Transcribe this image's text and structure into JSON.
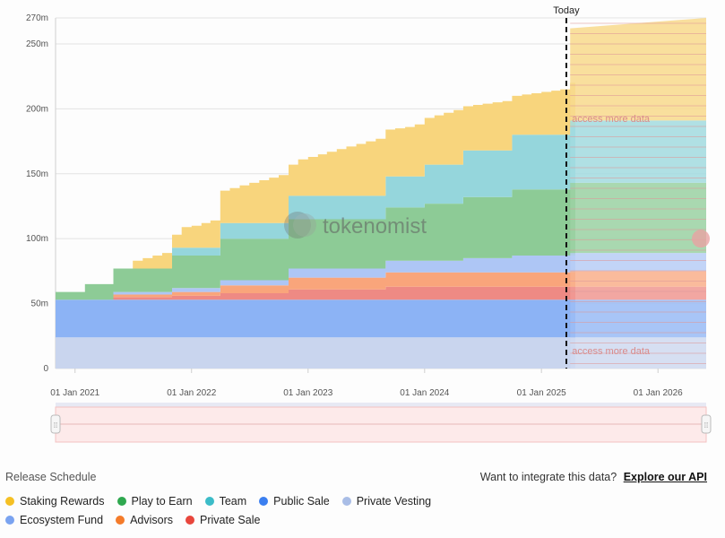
{
  "chart_data": {
    "type": "area",
    "today_label": "Today",
    "watermark": "tokenomist",
    "locked_text": "access more data",
    "ylim": [
      0,
      270
    ],
    "y_ticks": [
      {
        "v": 0,
        "label": "0"
      },
      {
        "v": 50,
        "label": "50m"
      },
      {
        "v": 100,
        "label": "100m"
      },
      {
        "v": 150,
        "label": "150m"
      },
      {
        "v": 200,
        "label": "200m"
      },
      {
        "v": 250,
        "label": "250m"
      },
      {
        "v": 270,
        "label": "270m"
      }
    ],
    "x_ticks": [
      "01 Jan 2021",
      "01 Jan 2022",
      "01 Jan 2023",
      "01 Jan 2024",
      "01 Jan 2025",
      "01 Jan 2026"
    ],
    "x_start": "2020-11-01",
    "x_end": "2026-06-01",
    "today": "2025-03-20",
    "dates": [
      "2020-11-01",
      "2021-02-01",
      "2021-05-01",
      "2021-06-01",
      "2021-07-01",
      "2021-08-01",
      "2021-09-01",
      "2021-10-01",
      "2021-11-01",
      "2021-12-01",
      "2022-01-01",
      "2022-02-01",
      "2022-03-01",
      "2022-04-01",
      "2022-05-01",
      "2022-06-01",
      "2022-07-01",
      "2022-08-01",
      "2022-09-01",
      "2022-10-01",
      "2022-11-01",
      "2022-12-01",
      "2023-01-01",
      "2023-02-01",
      "2023-03-01",
      "2023-04-01",
      "2023-05-01",
      "2023-06-01",
      "2023-07-01",
      "2023-08-01",
      "2023-09-01",
      "2023-10-01",
      "2023-11-01",
      "2023-12-01",
      "2024-01-01",
      "2024-02-01",
      "2024-03-01",
      "2024-04-01",
      "2024-05-01",
      "2024-06-01",
      "2024-07-01",
      "2024-08-01",
      "2024-09-01",
      "2024-10-01",
      "2024-11-01",
      "2024-12-01",
      "2025-01-01",
      "2025-02-01",
      "2025-03-01",
      "2025-04-01"
    ],
    "series": [
      {
        "name": "Private Vesting",
        "color": "#c9d5ee",
        "values": [
          24,
          24,
          24,
          24,
          24,
          24,
          24,
          24,
          24,
          24,
          24,
          24,
          24,
          24,
          24,
          24,
          24,
          24,
          24,
          24,
          24,
          24,
          24,
          24,
          24,
          24,
          24,
          24,
          24,
          24,
          24,
          24,
          24,
          24,
          24,
          24,
          24,
          24,
          24,
          24,
          24,
          24,
          24,
          24,
          24,
          24,
          24,
          24,
          24,
          24
        ]
      },
      {
        "name": "Public Sale",
        "color": "#8cb3f5",
        "values": [
          29,
          29,
          29,
          29,
          29,
          29,
          29,
          29,
          29,
          29,
          29,
          29,
          29,
          29,
          29,
          29,
          29,
          29,
          29,
          29,
          29,
          29,
          29,
          29,
          29,
          29,
          29,
          29,
          29,
          29,
          29,
          29,
          29,
          29,
          29,
          29,
          29,
          29,
          29,
          29,
          29,
          29,
          29,
          29,
          29,
          29,
          29,
          29,
          29,
          29
        ]
      },
      {
        "name": "Private Sale",
        "color": "#ee8a84",
        "values": [
          0,
          0,
          2,
          2,
          2,
          2,
          2,
          2,
          3,
          3,
          3,
          3,
          3,
          5,
          5,
          5,
          5,
          5,
          5,
          5,
          8,
          8,
          8,
          8,
          8,
          8,
          8,
          8,
          8,
          8,
          10,
          10,
          10,
          10,
          10,
          10,
          10,
          10,
          10,
          10,
          10,
          10,
          10,
          10,
          10,
          10,
          10,
          10,
          10,
          10
        ]
      },
      {
        "name": "Advisors",
        "color": "#f9a57b",
        "values": [
          0,
          0,
          2,
          2,
          2,
          2,
          2,
          2,
          3,
          3,
          3,
          3,
          3,
          6,
          6,
          6,
          6,
          6,
          6,
          6,
          9,
          9,
          9,
          9,
          9,
          9,
          9,
          9,
          9,
          9,
          11,
          11,
          11,
          11,
          11,
          11,
          11,
          11,
          11,
          11,
          11,
          11,
          11,
          11,
          11,
          11,
          11,
          11,
          11,
          11
        ]
      },
      {
        "name": "Ecosystem Fund",
        "color": "#aec6f5",
        "values": [
          0,
          0,
          2,
          2,
          2,
          2,
          2,
          2,
          3,
          3,
          3,
          3,
          3,
          4,
          4,
          4,
          4,
          4,
          4,
          4,
          7,
          7,
          7,
          7,
          7,
          7,
          7,
          7,
          7,
          7,
          9,
          9,
          9,
          9,
          9,
          9,
          9,
          9,
          11,
          11,
          11,
          11,
          11,
          13,
          13,
          13,
          13,
          13,
          13,
          13
        ]
      },
      {
        "name": "Play to Earn",
        "color": "#8dcb96",
        "values": [
          6,
          12,
          18,
          18,
          18,
          18,
          18,
          18,
          25,
          25,
          25,
          25,
          25,
          32,
          32,
          32,
          32,
          32,
          32,
          32,
          38,
          38,
          38,
          38,
          38,
          38,
          38,
          38,
          38,
          38,
          41,
          41,
          41,
          41,
          44,
          44,
          44,
          44,
          47,
          47,
          47,
          47,
          47,
          51,
          51,
          51,
          51,
          51,
          51,
          51
        ]
      },
      {
        "name": "Team",
        "color": "#95d6dc",
        "values": [
          0,
          0,
          0,
          0,
          0,
          0,
          0,
          0,
          6,
          6,
          6,
          6,
          6,
          12,
          12,
          12,
          12,
          12,
          12,
          12,
          18,
          18,
          18,
          18,
          18,
          18,
          18,
          18,
          18,
          18,
          24,
          24,
          24,
          24,
          30,
          30,
          30,
          30,
          36,
          36,
          36,
          36,
          36,
          42,
          42,
          42,
          42,
          42,
          42,
          48
        ]
      },
      {
        "name": "Staking Rewards",
        "color": "#f8d57d",
        "values": [
          0,
          0,
          0,
          0,
          6,
          8,
          10,
          12,
          10,
          16,
          17,
          19,
          21,
          25,
          27,
          29,
          31,
          33,
          35,
          37,
          24,
          28,
          30,
          32,
          34,
          36,
          38,
          40,
          42,
          44,
          36,
          37,
          38,
          40,
          36,
          38,
          40,
          42,
          34,
          35,
          36,
          37,
          38,
          30,
          31,
          32,
          33,
          34,
          35,
          34
        ]
      }
    ],
    "projection": {
      "start": "2025-04-01",
      "stack_tops": [
        24,
        53,
        63,
        75,
        89,
        143,
        191,
        262
      ],
      "final_top": 270
    }
  },
  "navigator": {
    "left_handle": "⁞⁞",
    "right_handle": "⁞⁞"
  },
  "footer": {
    "title": "Release Schedule",
    "integrate_text": "Want to integrate this data?",
    "integrate_link": "Explore our API"
  },
  "legend": [
    [
      {
        "label": "Staking Rewards",
        "color": "#f5c024"
      },
      {
        "label": "Play to Earn",
        "color": "#2fa84f"
      },
      {
        "label": "Team",
        "color": "#3cbcc8"
      },
      {
        "label": "Public Sale",
        "color": "#3b7ff0"
      },
      {
        "label": "Private Vesting",
        "color": "#a9bde6"
      }
    ],
    [
      {
        "label": "Ecosystem Fund",
        "color": "#7aa3f0"
      },
      {
        "label": "Advisors",
        "color": "#f47b2a"
      },
      {
        "label": "Private Sale",
        "color": "#e8463c"
      }
    ]
  ]
}
